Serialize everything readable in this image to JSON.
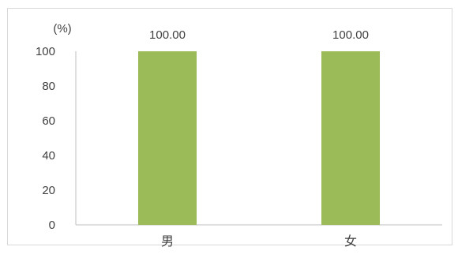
{
  "chart_data": {
    "type": "bar",
    "categories": [
      "男",
      "女"
    ],
    "values": [
      100.0,
      100.0
    ],
    "data_labels": [
      "100.00",
      "100.00"
    ],
    "ylabel": "(%)",
    "ylim": [
      0,
      100
    ],
    "yticks": [
      0,
      20,
      40,
      60,
      80,
      100
    ],
    "ytick_labels": [
      "0",
      "20",
      "40",
      "60",
      "80",
      "100"
    ],
    "grid": false,
    "legend": "none",
    "colors": {
      "bar": "#9BBB59",
      "axis": "#BFBFBF",
      "text": "#404040",
      "border": "#D9D9D9"
    }
  }
}
